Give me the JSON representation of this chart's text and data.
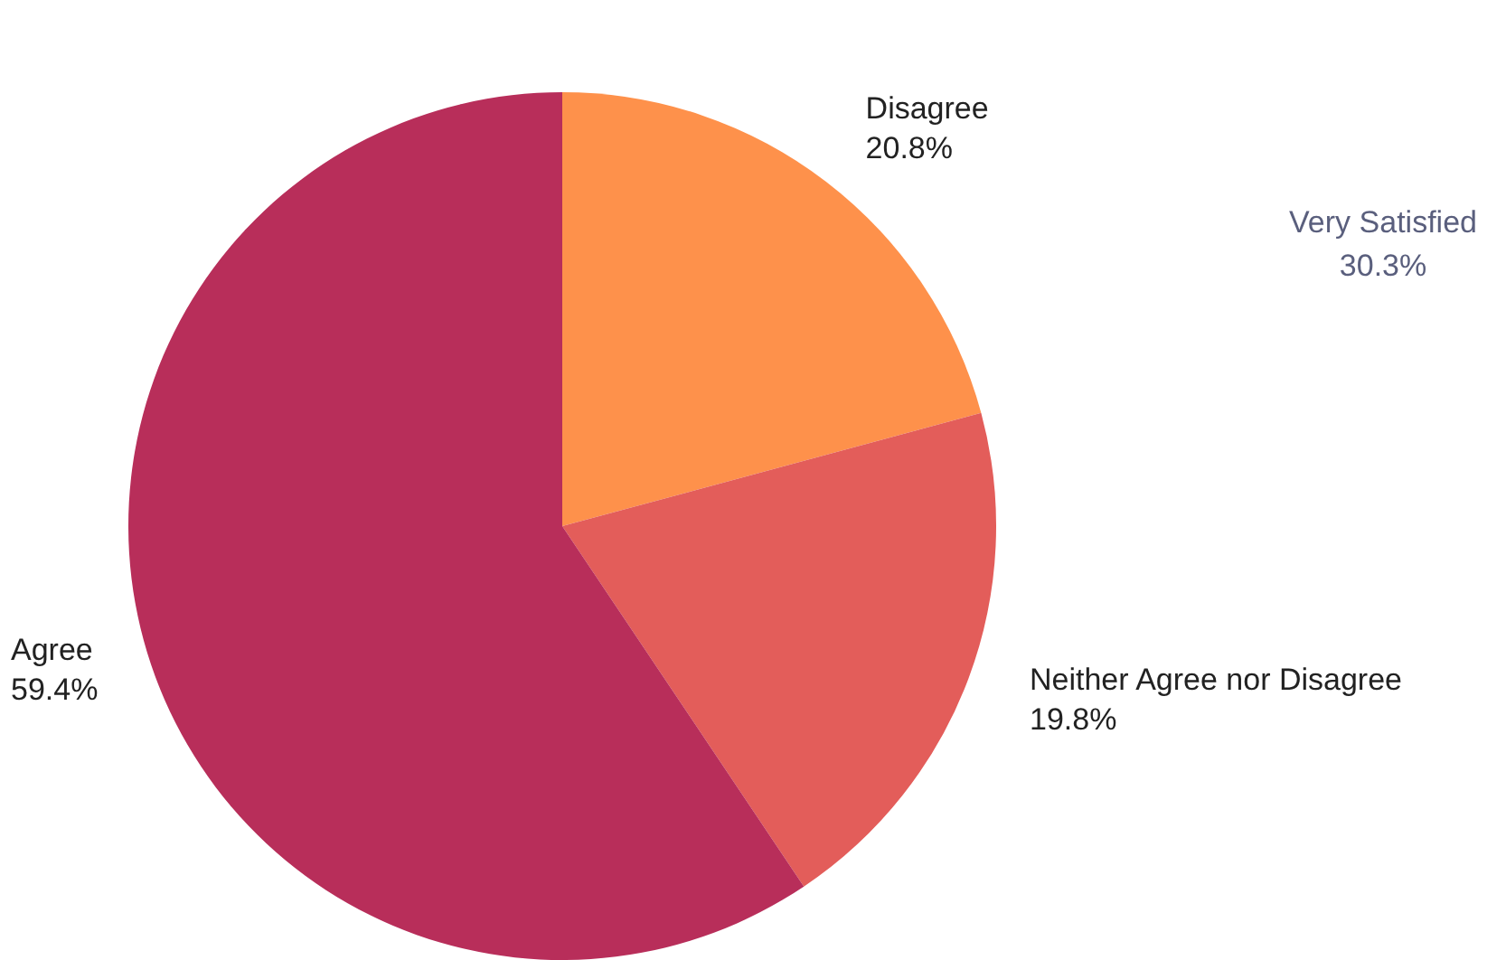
{
  "chart_data": {
    "type": "pie",
    "categories": [
      "Disagree",
      "Neither Agree nor Disagree",
      "Agree"
    ],
    "values": [
      20.8,
      19.8,
      59.4
    ],
    "value_labels": [
      "20.8%",
      "19.8%",
      "59.4%"
    ],
    "colors": [
      "#fe914b",
      "#e35d5a",
      "#b82e5a"
    ],
    "legend": false,
    "annotations": [
      "Very Satisfied",
      "30.3%"
    ]
  }
}
